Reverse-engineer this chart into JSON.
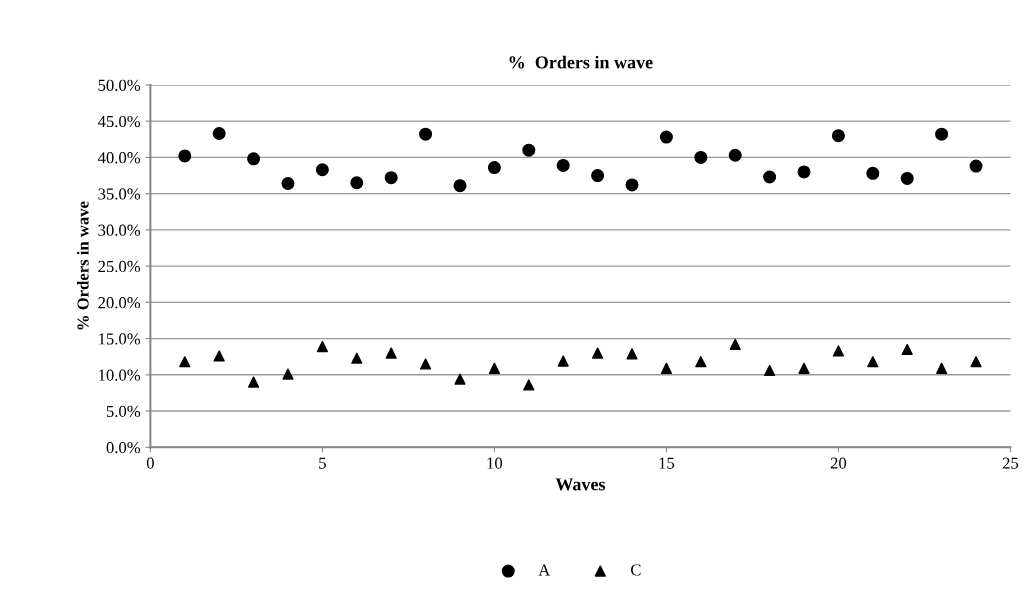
{
  "chart_data": {
    "type": "scatter",
    "title": "%  Orders in wave",
    "xlabel": "Waves",
    "ylabel": "% Orders in wave",
    "x": [
      1,
      2,
      3,
      4,
      5,
      6,
      7,
      8,
      9,
      10,
      11,
      12,
      13,
      14,
      15,
      16,
      17,
      18,
      19,
      20,
      21,
      22,
      23,
      24
    ],
    "series": [
      {
        "name": "A",
        "color": "#000000",
        "marker": "circle",
        "values": [
          40.2,
          43.3,
          39.8,
          36.4,
          38.3,
          36.5,
          37.2,
          43.2,
          36.1,
          38.6,
          41.0,
          38.9,
          37.5,
          36.2,
          42.8,
          40.0,
          40.3,
          37.3,
          38.0,
          43.0,
          37.8,
          37.1,
          43.2,
          38.8
        ]
      },
      {
        "name": "C",
        "color": "#000000",
        "marker": "triangle",
        "values": [
          11.8,
          12.6,
          9.0,
          10.1,
          13.9,
          12.3,
          13.0,
          11.5,
          9.4,
          10.9,
          8.6,
          11.9,
          13.0,
          12.9,
          10.9,
          11.8,
          14.2,
          10.6,
          10.9,
          13.3,
          11.8,
          13.5,
          10.9,
          11.8
        ]
      }
    ],
    "xlim": [
      0,
      25
    ],
    "xticks": [
      0,
      5,
      10,
      15,
      20,
      25
    ],
    "ylim": [
      0,
      50
    ],
    "yticks": [
      {
        "value": 0,
        "label": "0.0%"
      },
      {
        "value": 5,
        "label": "5.0%"
      },
      {
        "value": 10,
        "label": "10.0%"
      },
      {
        "value": 15,
        "label": "15.0%"
      },
      {
        "value": 20,
        "label": "20.0%"
      },
      {
        "value": 25,
        "label": "25.0%"
      },
      {
        "value": 30,
        "label": "30.0%"
      },
      {
        "value": 35,
        "label": "35.0%"
      },
      {
        "value": 40,
        "label": "40.0%"
      },
      {
        "value": 45,
        "label": "45.0%"
      },
      {
        "value": 50,
        "label": "50.0%"
      }
    ],
    "grid": "y",
    "legend": "bottom"
  }
}
